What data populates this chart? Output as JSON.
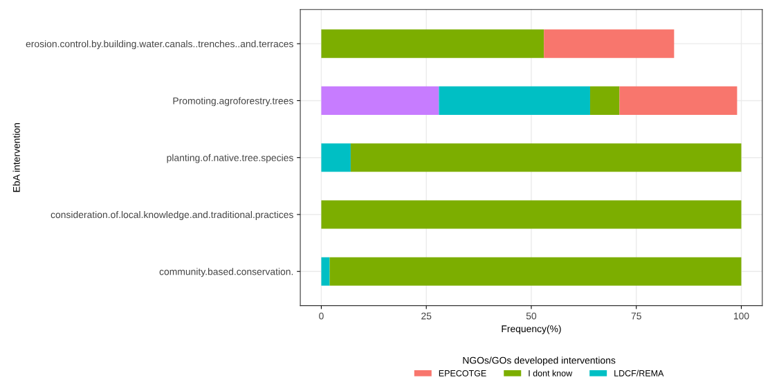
{
  "chart_data": {
    "type": "bar",
    "orientation": "horizontal",
    "stacked": true,
    "xlabel": "Frequency(%)",
    "ylabel": "EbA intervention",
    "legend_title": "NGOs/GOs developed interventions",
    "categories": [
      "erosion.control.by.building.water.canals..trenches..and.terraces",
      "Promoting.agroforestry.trees",
      "planting.of.native.tree.species",
      "consideration.of.local.knowledge.and.traditional.practices",
      "community.based.conservation."
    ],
    "series": [
      {
        "color": "#c77cff",
        "values": [
          null,
          28,
          null,
          null,
          null
        ]
      },
      {
        "name": "LDCF/REMA",
        "color": "#00bfc4",
        "values": [
          null,
          36,
          7,
          null,
          2
        ]
      },
      {
        "name": "I dont know",
        "color": "#7cae00",
        "values": [
          53,
          7,
          93,
          100,
          98
        ]
      },
      {
        "name": "EPECOTGE",
        "color": "#f8766d",
        "values": [
          31,
          28,
          null,
          null,
          null
        ]
      }
    ],
    "xlim": [
      -5,
      105
    ],
    "xticks": [
      0,
      25,
      50,
      75,
      100
    ],
    "grid": true,
    "legend": "bottom"
  }
}
